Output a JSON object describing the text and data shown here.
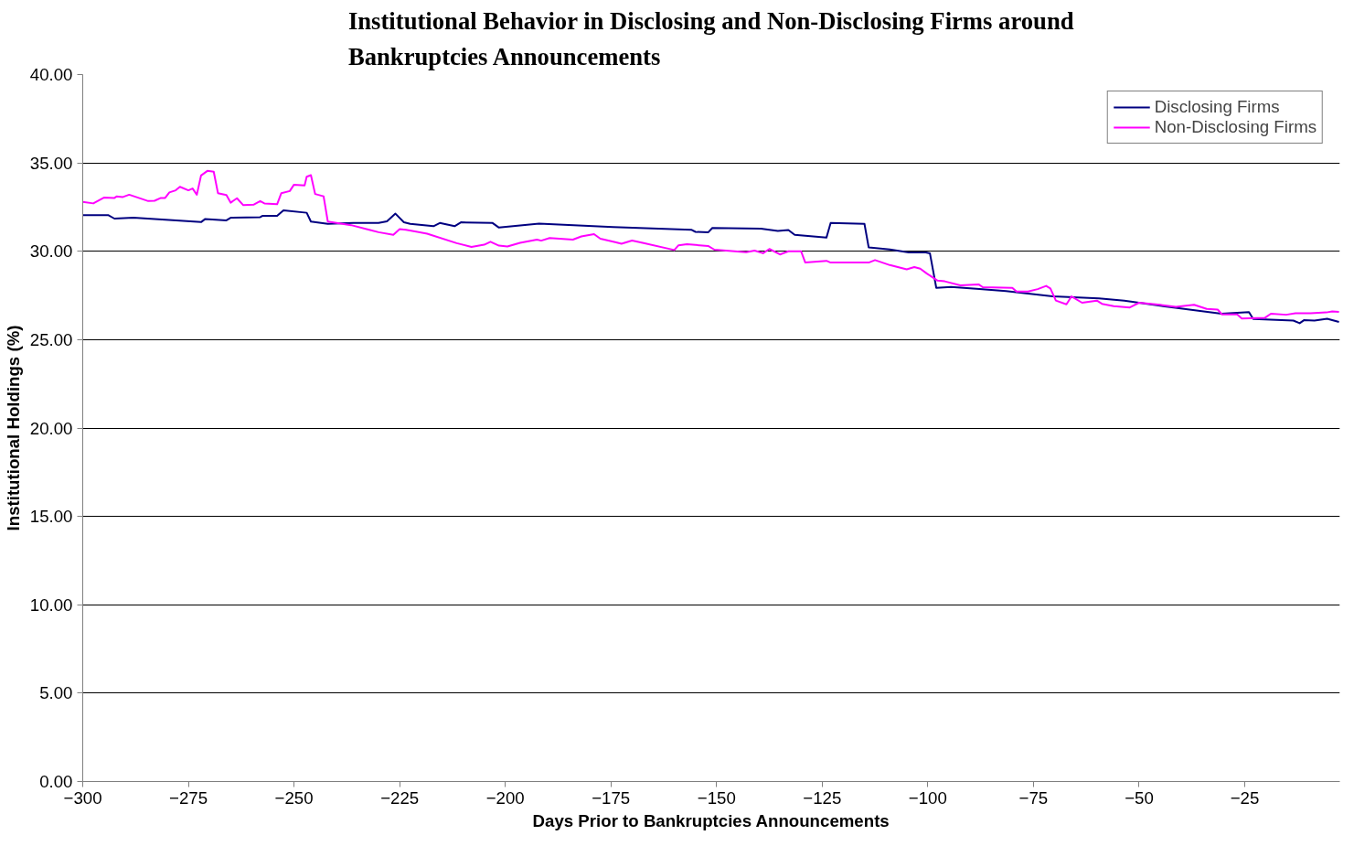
{
  "chart_data": {
    "type": "line",
    "title": "Institutional Behavior in Disclosing and Non-Disclosing Firms around\nBankruptcies Announcements",
    "xlabel": "Days Prior to Bankruptcies Announcements",
    "ylabel": "Institutional Holdings (%)",
    "xlim": [
      -300,
      -2.5
    ],
    "xticks": [
      -300,
      -275,
      -250,
      -225,
      -200,
      -175,
      -150,
      -125,
      -100,
      -75,
      -50,
      -25
    ],
    "ylim": [
      0,
      40
    ],
    "yticks": [
      {
        "value": 0,
        "label": "0.00"
      },
      {
        "value": 5,
        "label": "5.00"
      },
      {
        "value": 10,
        "label": "10.00"
      },
      {
        "value": 15,
        "label": "15.00"
      },
      {
        "value": 20,
        "label": "20.00"
      },
      {
        "value": 25,
        "label": "25.00"
      },
      {
        "value": 30,
        "label": "30.00"
      },
      {
        "value": 35,
        "label": "35.00"
      },
      {
        "value": 40,
        "label": "40.00"
      }
    ],
    "grid": "y",
    "legend": "top right",
    "marker": "none",
    "line_style": "solid",
    "series": [
      {
        "name": "Disclosing Firms",
        "color": "#000080",
        "x": [
          -300,
          -294,
          -292.5,
          -288,
          -272,
          -271,
          -266,
          -265,
          -258,
          -257.5,
          -254,
          -252.5,
          -247,
          -246,
          -242,
          -236,
          -230,
          -228,
          -226,
          -224,
          -222.5,
          -217,
          -215.5,
          -212,
          -210.5,
          -203,
          -201.5,
          -192,
          -174.5,
          -156,
          -155,
          -152,
          -151,
          -139.5,
          -135.5,
          -133,
          -131.5,
          -124,
          -123,
          -115,
          -114,
          -109,
          -104.5,
          -100.5,
          -99.5,
          -98,
          -94.5,
          -88.5,
          -81.5,
          -70.5,
          -59.5,
          -53.5,
          -45,
          -30.5,
          -24,
          -23,
          -13.5,
          -12,
          -11,
          -8.5,
          -5.5,
          -2.7
        ],
        "values": [
          32.04,
          32.05,
          31.85,
          31.9,
          31.65,
          31.83,
          31.75,
          31.9,
          31.93,
          32.0,
          32.0,
          32.32,
          32.18,
          31.68,
          31.55,
          31.6,
          31.6,
          31.7,
          32.13,
          31.64,
          31.55,
          31.42,
          31.6,
          31.42,
          31.64,
          31.6,
          31.34,
          31.57,
          31.37,
          31.22,
          31.1,
          31.07,
          31.32,
          31.28,
          31.15,
          31.2,
          30.93,
          30.77,
          31.6,
          31.55,
          30.22,
          30.1,
          29.93,
          29.93,
          29.88,
          27.93,
          27.98,
          27.88,
          27.75,
          27.45,
          27.33,
          27.2,
          26.92,
          26.47,
          26.56,
          26.17,
          26.08,
          25.93,
          26.1,
          26.08,
          26.18,
          26.0
        ]
      },
      {
        "name": "Non-Disclosing Firms",
        "color": "#ff00ff",
        "x": [
          -300,
          -297.5,
          -295,
          -292.5,
          -292,
          -290.5,
          -289,
          -284.5,
          -283,
          -281.5,
          -280.5,
          -279.5,
          -278,
          -277,
          -275,
          -274,
          -273,
          -272,
          -270.5,
          -269,
          -268,
          -266,
          -265,
          -263.5,
          -262,
          -259.5,
          -258,
          -257,
          -254,
          -253,
          -251,
          -250,
          -247.5,
          -247,
          -246,
          -245,
          -243,
          -242,
          -236.5,
          -232,
          -230,
          -226.5,
          -225,
          -223.5,
          -218.5,
          -211.5,
          -208,
          -205,
          -203.5,
          -201.5,
          -199.5,
          -196.5,
          -192.5,
          -191.5,
          -189.5,
          -184,
          -182,
          -179,
          -177.5,
          -174,
          -172.5,
          -170,
          -167.5,
          -160,
          -159,
          -157,
          -152,
          -150.5,
          -143,
          -141,
          -139,
          -137.5,
          -135,
          -133,
          -130,
          -129,
          -124,
          -123,
          -114,
          -112.5,
          -109,
          -105,
          -103.2,
          -101.8,
          -100.3,
          -97.7,
          -96,
          -92.3,
          -88,
          -87,
          -80,
          -79,
          -76.3,
          -74,
          -72,
          -71,
          -69.7,
          -67.2,
          -66,
          -63.5,
          -60,
          -58.8,
          -56,
          -52.2,
          -50,
          -45,
          -41.3,
          -37,
          -34,
          -31.4,
          -30.4,
          -26.8,
          -25.7,
          -20.2,
          -18.8,
          -15.2,
          -13,
          -9.4,
          -5.7,
          -4.3,
          -2.7
        ],
        "values": [
          32.8,
          32.71,
          33.04,
          33.02,
          33.1,
          33.07,
          33.2,
          32.84,
          32.86,
          33.02,
          33.02,
          33.33,
          33.45,
          33.65,
          33.45,
          33.55,
          33.2,
          34.29,
          34.55,
          34.5,
          33.29,
          33.18,
          32.75,
          33.0,
          32.61,
          32.64,
          32.84,
          32.71,
          32.66,
          33.29,
          33.41,
          33.77,
          33.72,
          34.22,
          34.31,
          33.24,
          33.11,
          31.68,
          31.48,
          31.2,
          31.08,
          30.93,
          31.25,
          31.22,
          31.0,
          30.46,
          30.25,
          30.37,
          30.54,
          30.32,
          30.27,
          30.48,
          30.66,
          30.6,
          30.75,
          30.66,
          30.84,
          30.97,
          30.71,
          30.52,
          30.43,
          30.61,
          30.48,
          30.07,
          30.34,
          30.4,
          30.3,
          30.09,
          29.95,
          30.04,
          29.89,
          30.13,
          29.82,
          30.0,
          30.0,
          29.36,
          29.46,
          29.36,
          29.36,
          29.5,
          29.22,
          28.98,
          29.11,
          29.02,
          28.75,
          28.34,
          28.3,
          28.07,
          28.13,
          27.97,
          27.93,
          27.72,
          27.72,
          27.86,
          28.04,
          27.9,
          27.21,
          27.0,
          27.45,
          27.09,
          27.21,
          27.03,
          26.9,
          26.82,
          27.09,
          26.97,
          26.86,
          26.97,
          26.74,
          26.7,
          26.43,
          26.43,
          26.2,
          26.24,
          26.47,
          26.41,
          26.49,
          26.5,
          26.54,
          26.6,
          26.57
        ]
      }
    ]
  }
}
